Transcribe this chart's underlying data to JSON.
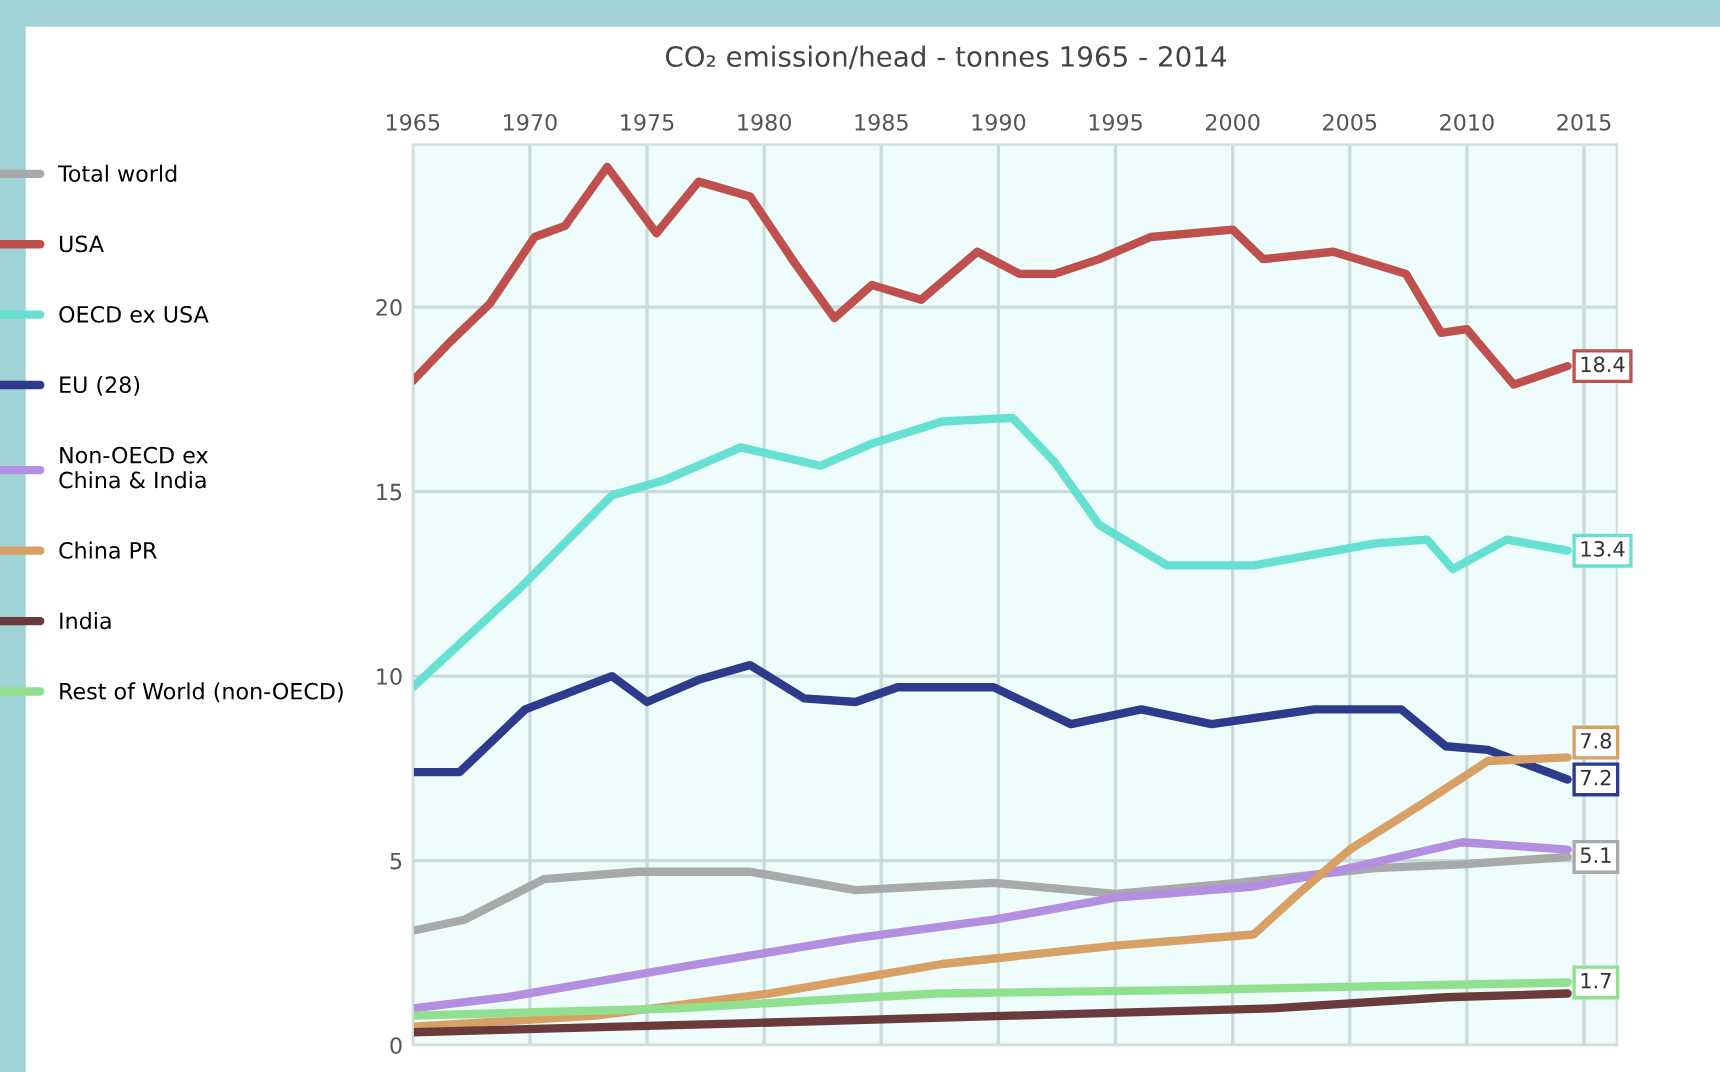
{
  "chart_data": {
    "type": "line",
    "title": "CO₂ emission/head - tonnes 1965 - 2014",
    "xlim": [
      1965,
      2016.4
    ],
    "xticks": [
      1965,
      1970,
      1975,
      1980,
      1985,
      1990,
      1995,
      2000,
      2005,
      2010,
      2015
    ],
    "ylim": [
      0,
      24.4
    ],
    "yticks": [
      0,
      5,
      10,
      15,
      20
    ],
    "grid": true,
    "legend": "left",
    "marker": "none",
    "line_style": "solid",
    "series": [
      {
        "name": "Total world",
        "color": "#a9a9a9",
        "x": [
          1965,
          1967.2,
          1970.6,
          1974.6,
          1979.4,
          1983.9,
          1989.8,
          1995,
          2000.2,
          2006.1,
          2009.8,
          2014.3
        ],
        "values": [
          3.1,
          3.4,
          4.5,
          4.7,
          4.7,
          4.2,
          4.4,
          4.1,
          4.4,
          4.8,
          4.9,
          5.1
        ],
        "value_labels": [
          null,
          null,
          null,
          null,
          null,
          null,
          null,
          null,
          null,
          null,
          null,
          "5.1"
        ]
      },
      {
        "name": "USA",
        "color": "#c0504d",
        "x": [
          1965,
          1966.5,
          1968.3,
          1970.2,
          1971.5,
          1973.3,
          1975.4,
          1977.2,
          1979.4,
          1981.3,
          1983,
          1984.6,
          1986.7,
          1989.1,
          1990.9,
          1992.4,
          1994.3,
          1996.5,
          2000,
          2001.3,
          2004.3,
          2007.4,
          2008.9,
          2010,
          2012,
          2014.3
        ],
        "values": [
          18.0,
          19.0,
          20.1,
          21.9,
          22.2,
          23.8,
          22.0,
          23.4,
          23.0,
          21.2,
          19.7,
          20.6,
          20.2,
          21.5,
          20.9,
          20.9,
          21.3,
          21.9,
          22.1,
          21.3,
          21.5,
          20.9,
          19.3,
          19.4,
          17.9,
          18.4
        ],
        "value_labels": [
          null,
          null,
          null,
          null,
          null,
          null,
          null,
          null,
          null,
          null,
          null,
          null,
          null,
          null,
          null,
          null,
          null,
          null,
          null,
          null,
          null,
          null,
          null,
          null,
          null,
          "18.4"
        ]
      },
      {
        "name": "OECD ex USA",
        "color": "#66e0d0",
        "x": [
          1965,
          1969.6,
          1973.5,
          1975.7,
          1979,
          1982.4,
          1984.6,
          1987.6,
          1990.6,
          1992.4,
          1994.3,
          1997.2,
          2000.9,
          2006.1,
          2008.3,
          2009.4,
          2011.7,
          2014.3
        ],
        "values": [
          9.7,
          12.4,
          14.9,
          15.3,
          16.2,
          15.7,
          16.3,
          16.9,
          17.0,
          15.8,
          14.1,
          13.0,
          13.0,
          13.6,
          13.7,
          12.9,
          13.7,
          13.4
        ],
        "value_labels": [
          null,
          null,
          null,
          null,
          null,
          null,
          null,
          null,
          null,
          null,
          null,
          null,
          null,
          null,
          null,
          null,
          null,
          "13.4"
        ]
      },
      {
        "name": "EU (28)",
        "color": "#2e3a8c",
        "x": [
          1965,
          1967,
          1969.8,
          1973.5,
          1975,
          1977.2,
          1979.4,
          1981.7,
          1983.9,
          1985.7,
          1989.8,
          1993.1,
          1996.1,
          1999.1,
          2003.5,
          2007.2,
          2009.1,
          2010.9,
          2014.3
        ],
        "values": [
          7.4,
          7.4,
          9.1,
          10.0,
          9.3,
          9.9,
          10.3,
          9.4,
          9.3,
          9.7,
          9.7,
          8.7,
          9.1,
          8.7,
          9.1,
          9.1,
          8.1,
          8.0,
          7.2
        ],
        "value_labels": [
          null,
          null,
          null,
          null,
          null,
          null,
          null,
          null,
          null,
          null,
          null,
          null,
          null,
          null,
          null,
          null,
          null,
          null,
          "7.2"
        ]
      },
      {
        "name": "Non-OECD ex\nChina & India",
        "color": "#b48ee0",
        "x": [
          1965,
          1969,
          1977.2,
          1983.9,
          1989.8,
          1995,
          2000.9,
          2004.3,
          2009.8,
          2014.3
        ],
        "values": [
          1.0,
          1.3,
          2.2,
          2.9,
          3.4,
          4.0,
          4.3,
          4.7,
          5.5,
          5.3
        ]
      },
      {
        "name": "China PR",
        "color": "#d9a066",
        "x": [
          1965,
          1972.8,
          1980.2,
          1987.6,
          1995,
          2000.9,
          2002.8,
          2005,
          2008,
          2010.9,
          2014.3
        ],
        "values": [
          0.5,
          0.8,
          1.4,
          2.2,
          2.7,
          3.0,
          4.1,
          5.3,
          6.5,
          7.7,
          7.8
        ],
        "value_labels": [
          null,
          null,
          null,
          null,
          null,
          null,
          null,
          null,
          null,
          null,
          "7.8"
        ]
      },
      {
        "name": "India",
        "color": "#6b3a3a",
        "x": [
          1965,
          1979.4,
          1990.6,
          2001.7,
          2009.1,
          2014.3
        ],
        "values": [
          0.35,
          0.6,
          0.8,
          1.0,
          1.3,
          1.4
        ]
      },
      {
        "name": "Rest of World (non-OECD)",
        "color": "#90e090",
        "x": [
          1965,
          1976.3,
          1987.4,
          1998.5,
          2014.3
        ],
        "values": [
          0.8,
          1.0,
          1.4,
          1.5,
          1.7
        ],
        "value_labels": [
          null,
          null,
          null,
          null,
          "1.7"
        ]
      }
    ]
  }
}
